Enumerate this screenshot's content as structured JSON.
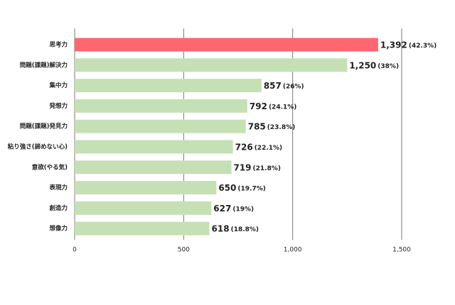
{
  "chart_data": {
    "type": "hbar",
    "categories": [
      "思考力",
      "問題(課題)解決力",
      "集中力",
      "発想力",
      "問題(課題)発見力",
      "粘り強さ(諦めない心)",
      "意欲(やる気)",
      "表現力",
      "創造力",
      "想像力"
    ],
    "values": [
      1392,
      1250,
      857,
      792,
      785,
      726,
      719,
      650,
      627,
      618
    ],
    "value_labels": [
      "1,392",
      "1,250",
      "857",
      "792",
      "785",
      "726",
      "719",
      "650",
      "627",
      "618"
    ],
    "percent_labels": [
      "(42.3%)",
      "(38%)",
      "(26%)",
      "(24.1%)",
      "(23.8%)",
      "(22.1%)",
      "(21.8%)",
      "(19.7%)",
      "(19%)",
      "(18.8%)"
    ],
    "colors": [
      "#ff6670",
      "#c6e0b5",
      "#c6e0b5",
      "#c6e0b5",
      "#c6e0b5",
      "#c6e0b5",
      "#c6e0b5",
      "#c6e0b5",
      "#c6e0b5",
      "#c6e0b5"
    ],
    "xlim": [
      0,
      1500
    ],
    "xticks": [
      0,
      500,
      {
        "value": 1000,
        "label": "1,000"
      },
      {
        "value": 1500,
        "label": "1,500"
      }
    ],
    "grid": true
  }
}
